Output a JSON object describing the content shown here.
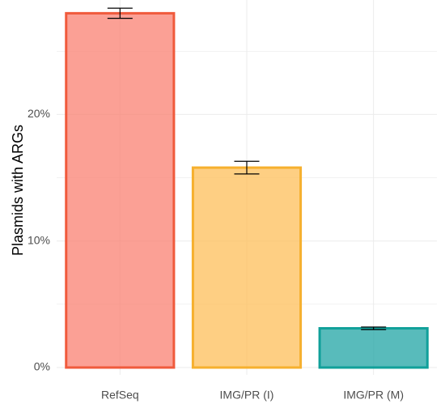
{
  "chart_data": {
    "type": "bar",
    "title": "",
    "xlabel": "",
    "ylabel": "Plasmids with ARGs",
    "categories": [
      "RefSeq",
      "IMG/PR (I)",
      "IMG/PR (M)"
    ],
    "values": [
      28.0,
      15.8,
      3.1
    ],
    "error_low": [
      27.6,
      15.3,
      3.0
    ],
    "error_high": [
      28.4,
      16.3,
      3.2
    ],
    "ylim": [
      0,
      28.6
    ],
    "yticks": [
      0,
      10,
      20
    ],
    "ytick_labels": [
      "0%",
      "10%",
      "20%"
    ],
    "grid": true,
    "legend": "none",
    "colors": {
      "fill": [
        "#fa8072",
        "#fdbf5a",
        "#20a4a4"
      ],
      "stroke": [
        "#f05a3c",
        "#f6b02e",
        "#10a09a"
      ],
      "error_bar": "#000000",
      "grid": "#ebebeb"
    }
  }
}
